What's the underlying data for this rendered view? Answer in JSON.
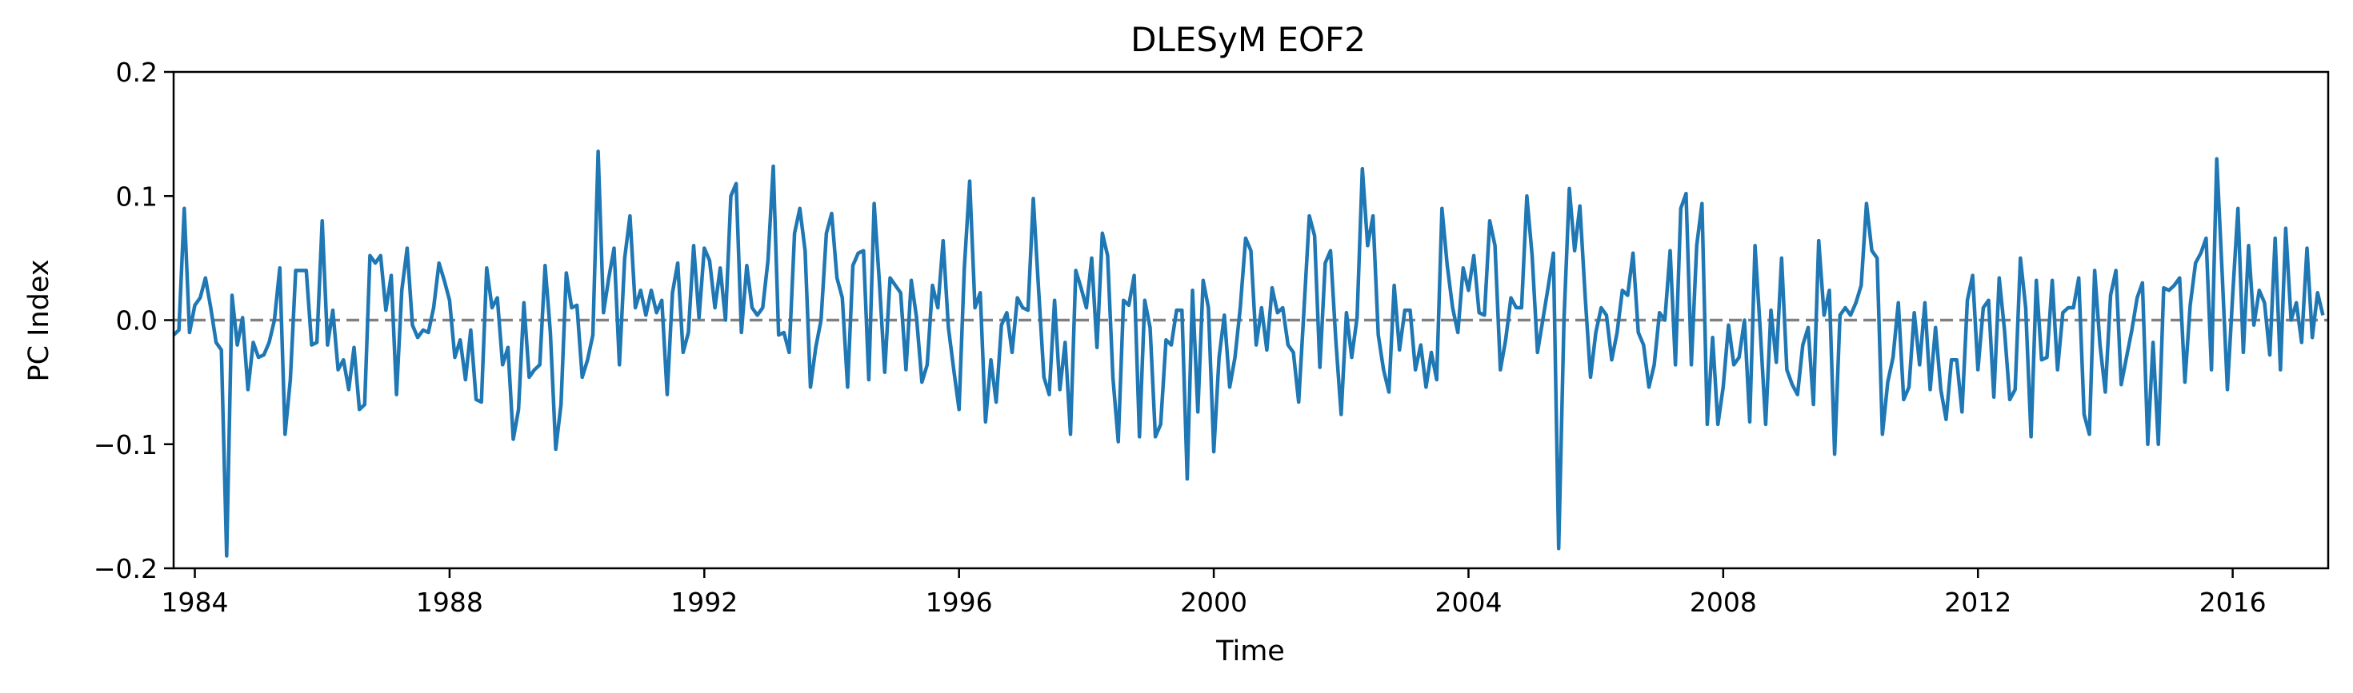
{
  "chart_data": {
    "type": "line",
    "title": "DLESyM  EOF2",
    "xlabel": "Time",
    "ylabel": "PC Index",
    "xlim": [
      "1983-09",
      "2017-07"
    ],
    "ylim": [
      -0.2,
      0.2
    ],
    "x_ticks": [
      "1984",
      "1988",
      "1992",
      "1996",
      "2000",
      "2004",
      "2008",
      "2012",
      "2016"
    ],
    "y_ticks": [
      "−0.2",
      "−0.1",
      "0.0",
      "0.1",
      "0.2"
    ],
    "x_start": "1983-09",
    "x_step": "1 month",
    "reference_line": {
      "y": 0.0,
      "style": "dashed",
      "color": "#808080"
    },
    "colors": {
      "series": "#1f77b4"
    },
    "series": [
      {
        "values": [
          -0.012,
          -0.008,
          0.09,
          -0.01,
          0.012,
          0.018,
          0.034,
          0.01,
          -0.018,
          -0.024,
          -0.19,
          0.02,
          -0.02,
          0.002,
          -0.056,
          -0.018,
          -0.03,
          -0.028,
          -0.018,
          0.0,
          0.042,
          -0.092,
          -0.048,
          0.04,
          0.04,
          0.04,
          -0.02,
          -0.018,
          0.08,
          -0.02,
          0.008,
          -0.04,
          -0.032,
          -0.056,
          -0.022,
          -0.072,
          -0.068,
          0.052,
          0.046,
          0.052,
          0.008,
          0.036,
          -0.06,
          0.024,
          0.058,
          -0.004,
          -0.014,
          -0.008,
          -0.01,
          0.01,
          0.046,
          0.032,
          0.016,
          -0.03,
          -0.016,
          -0.048,
          -0.008,
          -0.064,
          -0.066,
          0.042,
          0.01,
          0.018,
          -0.036,
          -0.022,
          -0.096,
          -0.072,
          0.014,
          -0.046,
          -0.04,
          -0.036,
          0.044,
          -0.01,
          -0.104,
          -0.068,
          0.038,
          0.01,
          0.012,
          -0.046,
          -0.032,
          -0.012,
          0.136,
          0.006,
          0.034,
          0.058,
          -0.036,
          0.05,
          0.084,
          0.01,
          0.024,
          0.004,
          0.024,
          0.006,
          0.016,
          -0.06,
          0.022,
          0.046,
          -0.026,
          -0.01,
          0.06,
          0.002,
          0.058,
          0.048,
          0.01,
          0.042,
          0.0,
          0.1,
          0.11,
          -0.01,
          0.044,
          0.01,
          0.004,
          0.01,
          0.048,
          0.124,
          -0.012,
          -0.01,
          -0.026,
          0.07,
          0.09,
          0.056,
          -0.054,
          -0.022,
          0.0,
          0.07,
          0.086,
          0.034,
          0.018,
          -0.054,
          0.044,
          0.054,
          0.056,
          -0.048,
          0.094,
          0.03,
          -0.042,
          0.034,
          0.028,
          0.022,
          -0.04,
          0.032,
          0.002,
          -0.05,
          -0.036,
          0.028,
          0.01,
          0.064,
          -0.006,
          -0.04,
          -0.072,
          0.042,
          0.112,
          0.01,
          0.022,
          -0.082,
          -0.032,
          -0.066,
          -0.004,
          0.006,
          -0.026,
          0.018,
          0.01,
          0.008,
          0.098,
          0.024,
          -0.046,
          -0.06,
          0.016,
          -0.056,
          -0.018,
          -0.092,
          0.04,
          0.026,
          0.01,
          0.05,
          -0.022,
          0.07,
          0.052,
          -0.046,
          -0.098,
          0.016,
          0.012,
          0.036,
          -0.094,
          0.016,
          -0.006,
          -0.094,
          -0.084,
          -0.016,
          -0.02,
          0.008,
          0.008,
          -0.128,
          0.024,
          -0.074,
          0.032,
          0.01,
          -0.106,
          -0.03,
          0.004,
          -0.054,
          -0.03,
          0.01,
          0.066,
          0.056,
          -0.02,
          0.01,
          -0.024,
          0.026,
          0.006,
          0.01,
          -0.02,
          -0.026,
          -0.066,
          0.008,
          0.084,
          0.068,
          -0.038,
          0.046,
          0.056,
          -0.016,
          -0.076,
          0.006,
          -0.03,
          0.002,
          0.122,
          0.06,
          0.084,
          -0.012,
          -0.04,
          -0.058,
          0.028,
          -0.024,
          0.008,
          0.008,
          -0.04,
          -0.02,
          -0.054,
          -0.026,
          -0.048,
          0.09,
          0.044,
          0.01,
          -0.01,
          0.042,
          0.024,
          0.052,
          0.006,
          0.004,
          0.08,
          0.06,
          -0.04,
          -0.016,
          0.018,
          0.01,
          0.01,
          0.1,
          0.052,
          -0.026,
          0.0,
          0.026,
          0.054,
          -0.184,
          0.0,
          0.106,
          0.056,
          0.092,
          0.018,
          -0.046,
          -0.01,
          0.01,
          0.004,
          -0.032,
          -0.01,
          0.024,
          0.02,
          0.054,
          -0.01,
          -0.02,
          -0.054,
          -0.036,
          0.006,
          0.0,
          0.056,
          -0.036,
          0.09,
          0.102,
          -0.036,
          0.06,
          0.094,
          -0.084,
          -0.014,
          -0.084,
          -0.054,
          -0.004,
          -0.036,
          -0.03,
          0.0,
          -0.082,
          0.06,
          -0.01,
          -0.084,
          0.008,
          -0.034,
          0.05,
          -0.04,
          -0.052,
          -0.06,
          -0.02,
          -0.006,
          -0.068,
          0.064,
          0.004,
          0.024,
          -0.108,
          0.004,
          0.01,
          0.004,
          0.014,
          0.028,
          0.094,
          0.056,
          0.05,
          -0.092,
          -0.05,
          -0.03,
          0.014,
          -0.064,
          -0.054,
          0.006,
          -0.036,
          0.014,
          -0.056,
          -0.006,
          -0.056,
          -0.08,
          -0.032,
          -0.032,
          -0.074,
          0.016,
          0.036,
          -0.04,
          0.01,
          0.016,
          -0.062,
          0.034,
          -0.008,
          -0.064,
          -0.056,
          0.05,
          0.01,
          -0.094,
          0.032,
          -0.032,
          -0.03,
          0.032,
          -0.04,
          0.006,
          0.01,
          0.01,
          0.034,
          -0.076,
          -0.092,
          0.04,
          -0.02,
          -0.058,
          0.02,
          0.04,
          -0.052,
          -0.03,
          -0.008,
          0.018,
          0.03,
          -0.1,
          -0.018,
          -0.1,
          0.026,
          0.024,
          0.028,
          0.034,
          -0.05,
          0.012,
          0.046,
          0.054,
          0.066,
          -0.04,
          0.13,
          0.04,
          -0.056,
          0.02,
          0.09,
          -0.026,
          0.06,
          -0.004,
          0.024,
          0.014,
          -0.028,
          0.066,
          -0.04,
          0.074,
          0.0,
          0.014,
          -0.018,
          0.058,
          -0.014,
          0.022,
          0.004
        ]
      }
    ]
  }
}
